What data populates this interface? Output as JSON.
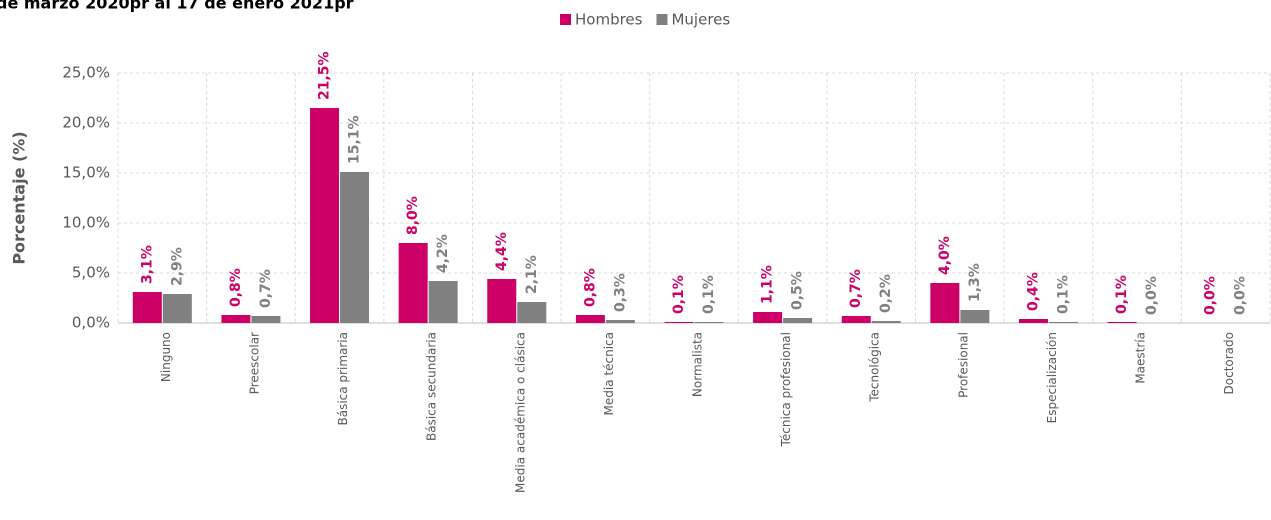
{
  "chart_data": {
    "type": "bar",
    "title": "de marzo 2020pr al 17 de enero 2021pr",
    "y_label": "Porcentaje (%)",
    "categories": [
      "Ninguno",
      "Preescolar",
      "Básica primaria",
      "Básica secundaria",
      "Media académica o clásica",
      "Media técnica",
      "Normalista",
      "Técnica profesional",
      "Tecnológica",
      "Profesional",
      "Especialización",
      "Maestría",
      "Doctorado"
    ],
    "series": [
      {
        "name": "Hombres",
        "color": "#cc0066",
        "values": [
          3.1,
          0.8,
          21.5,
          8.0,
          4.4,
          0.8,
          0.1,
          1.1,
          0.7,
          4.0,
          0.4,
          0.1,
          0.0
        ],
        "value_labels": [
          "3,1%",
          "0,8%",
          "21,5%",
          "8,0%",
          "4,4%",
          "0,8%",
          "0,1%",
          "1,1%",
          "0,7%",
          "4,0%",
          "0,4%",
          "0,1%",
          "0,0%"
        ]
      },
      {
        "name": "Mujeres",
        "color": "#808080",
        "values": [
          2.9,
          0.7,
          15.1,
          4.2,
          2.1,
          0.3,
          0.1,
          0.5,
          0.2,
          1.3,
          0.1,
          0.0,
          0.0
        ],
        "value_labels": [
          "2,9%",
          "0,7%",
          "15,1%",
          "4,2%",
          "2,1%",
          "0,3%",
          "0,1%",
          "0,5%",
          "0,2%",
          "1,3%",
          "0,1%",
          "0,0%",
          "0,0%"
        ]
      }
    ],
    "ylim": [
      0,
      25
    ],
    "yticks": [
      {
        "value": 0,
        "label": "0,0%"
      },
      {
        "value": 5,
        "label": "5,0%"
      },
      {
        "value": 10,
        "label": "10,0%"
      },
      {
        "value": 15,
        "label": "15,0%"
      },
      {
        "value": 20,
        "label": "20,0%"
      },
      {
        "value": 25,
        "label": "25,0%"
      }
    ],
    "grid": true,
    "legend": "top"
  }
}
